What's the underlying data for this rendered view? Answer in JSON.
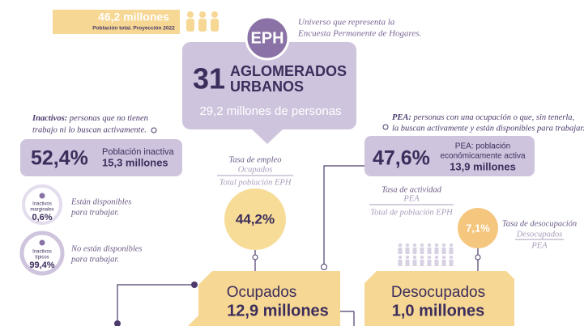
{
  "banner": {
    "population": "46,2 millones",
    "caption": "Población total. Proyección 2022"
  },
  "eph": {
    "badge": "EPH",
    "description": [
      "Universo que representa la",
      "Encuesta Permanente de Hogares."
    ]
  },
  "urban": {
    "count": "31",
    "label": [
      "AGLOMERADOS",
      "URBANOS"
    ],
    "people": "29,2 millones de personas"
  },
  "inactive": {
    "term": "Inactivos:",
    "definition": [
      "personas que no tienen",
      "trabajo ni lo buscan activamente."
    ],
    "rate": "52,4%",
    "label": "Población inactiva",
    "total": "15,3 millones",
    "groups": [
      {
        "name": [
          "Inactivos",
          "marginales"
        ],
        "share": "0,6%",
        "note": [
          "Están disponibles",
          "para trabajar."
        ]
      },
      {
        "name": [
          "Inactivos",
          "típicos"
        ],
        "share": "99,4%",
        "note": [
          "No están disponibles",
          "para trabajar."
        ]
      }
    ]
  },
  "employment": {
    "title": "Tasa de empleo",
    "numerator": "Ocupados",
    "denominator": "Total población EPH",
    "rate": "44,2%"
  },
  "pea": {
    "term": "PEA:",
    "definition": [
      "personas con una ocupación o que, sin tenerla,",
      "la buscan activamente y están disponibles para trabajar."
    ],
    "rate": "47,6%",
    "label": [
      "PEA: población",
      "económicamente activa"
    ],
    "total": "13,9 millones"
  },
  "activity": {
    "title": "Tasa de actividad",
    "numerator": "PEA",
    "denominator": "Total de población EPH"
  },
  "unemployment": {
    "title": "Tasa de desocupación",
    "numerator": "Desocupados",
    "denominator": "PEA",
    "rate": "7,1%"
  },
  "employed": {
    "label": "Ocupados",
    "total": "12,9 millones"
  },
  "unemployed": {
    "label": "Desocupados",
    "total": "1,0 millones"
  }
}
